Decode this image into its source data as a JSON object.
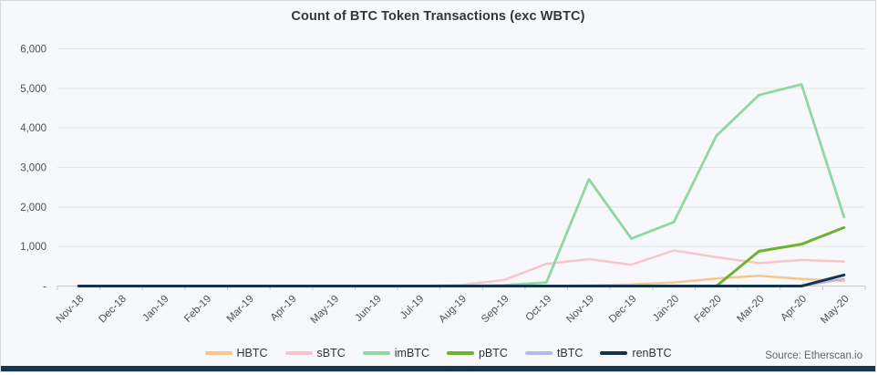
{
  "chart_data": {
    "type": "line",
    "title": "Count of BTC Token Transactions (exc WBTC)",
    "source": "Source: Etherscan.io",
    "categories": [
      "Nov-18",
      "Dec-18",
      "Jan-19",
      "Feb-19",
      "Mar-19",
      "Apr-19",
      "May-19",
      "Jun-19",
      "Jul-19",
      "Aug-19",
      "Sep-19",
      "Oct-19",
      "Nov-19",
      "Dec-19",
      "Jan-20",
      "Feb-20",
      "Mar-20",
      "Apr-20",
      "May-20"
    ],
    "series": [
      {
        "name": "HBTC",
        "color": "#f9c58e",
        "width": 2.5,
        "values": [
          0,
          0,
          0,
          0,
          0,
          0,
          0,
          0,
          0,
          0,
          0,
          0,
          15,
          40,
          90,
          190,
          260,
          180,
          130
        ]
      },
      {
        "name": "sBTC",
        "color": "#f9c5cd",
        "width": 2.5,
        "values": [
          0,
          0,
          0,
          0,
          0,
          0,
          0,
          0,
          0,
          30,
          150,
          560,
          680,
          540,
          900,
          730,
          580,
          660,
          620
        ]
      },
      {
        "name": "imBTC",
        "color": "#8fd7a3",
        "width": 2.8,
        "values": [
          0,
          0,
          0,
          0,
          0,
          0,
          0,
          0,
          0,
          0,
          20,
          90,
          2700,
          1200,
          1620,
          3800,
          4830,
          5100,
          1750
        ]
      },
      {
        "name": "pBTC",
        "color": "#6db32f",
        "width": 3,
        "values": [
          0,
          0,
          0,
          0,
          0,
          0,
          0,
          0,
          0,
          0,
          0,
          0,
          0,
          0,
          0,
          0,
          880,
          1060,
          1480
        ]
      },
      {
        "name": "tBTC",
        "color": "#b5bae8",
        "width": 2.5,
        "values": [
          0,
          0,
          0,
          0,
          0,
          0,
          0,
          0,
          0,
          0,
          0,
          0,
          0,
          0,
          0,
          0,
          0,
          0,
          180
        ]
      },
      {
        "name": "renBTC",
        "color": "#14344e",
        "width": 3,
        "values": [
          0,
          0,
          0,
          0,
          0,
          0,
          0,
          0,
          0,
          0,
          0,
          0,
          0,
          0,
          0,
          0,
          0,
          0,
          280
        ]
      }
    ],
    "ylim": [
      0,
      6000
    ],
    "ytick_interval": 1000,
    "ytick_labels": [
      "-",
      "1,000",
      "2,000",
      "3,000",
      "4,000",
      "5,000",
      "6,000"
    ],
    "grid": true,
    "legend_position": "bottom",
    "x_label_rotation": -45
  },
  "colors": {
    "background": "#f7f8fb",
    "gridline": "#e3e4e6",
    "axis": "#c7c9cc",
    "tick_text": "#4d5159",
    "footer_bar": "#16344c"
  }
}
